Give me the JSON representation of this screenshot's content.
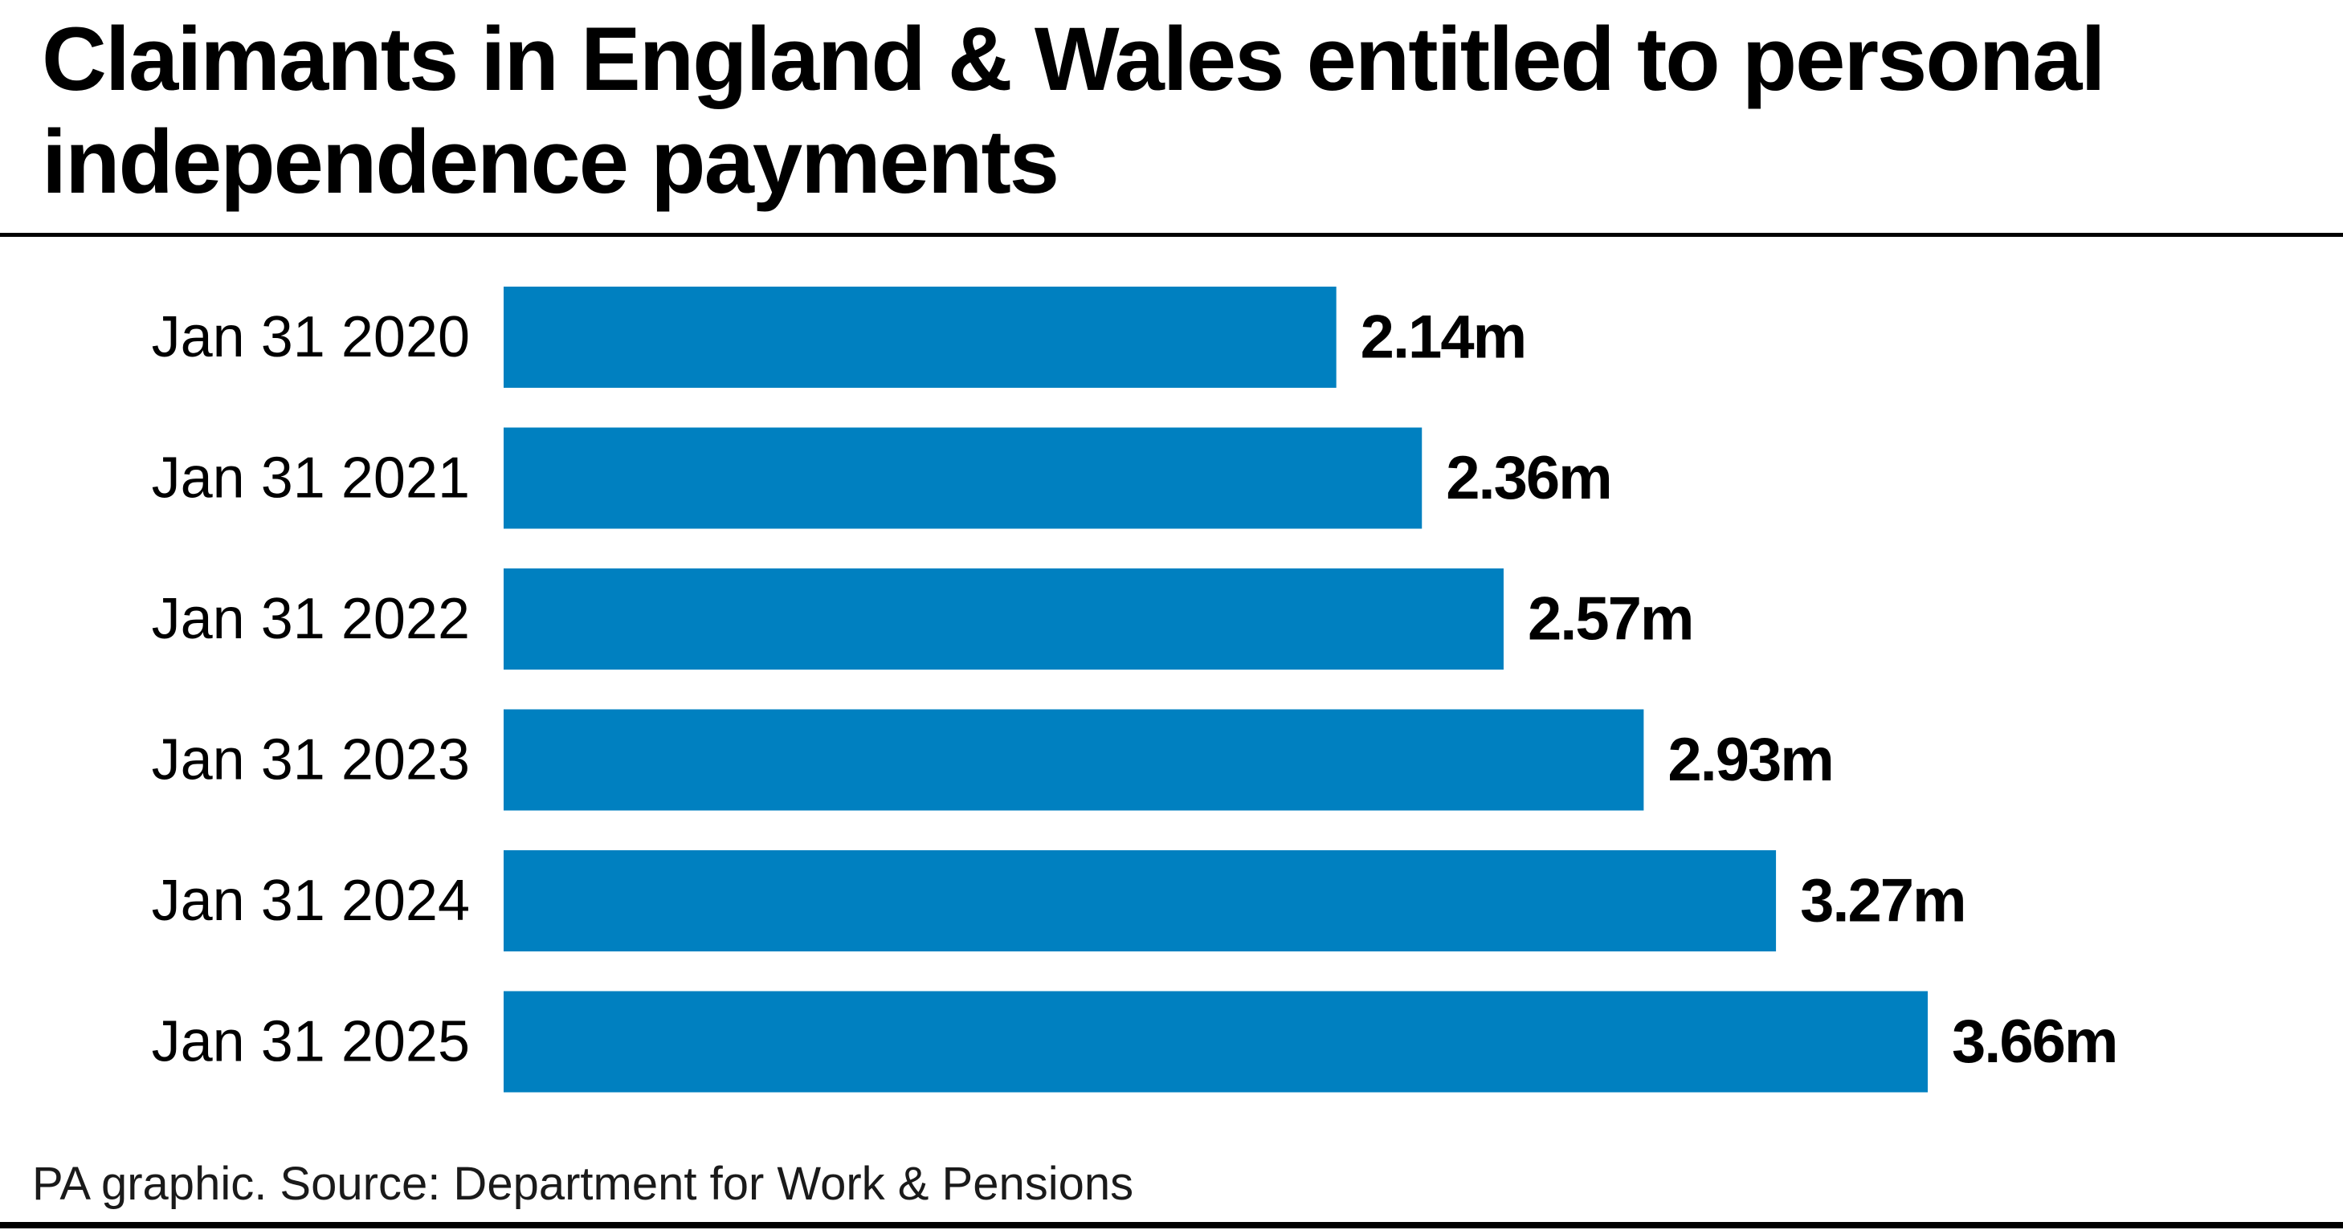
{
  "title": "Claimants in England & Wales entitled to personal independence payments",
  "source": "PA graphic. Source: Department for Work & Pensions",
  "colors": {
    "bar": "#0080c0",
    "text": "#000000",
    "rule": "#000000"
  },
  "chart_data": {
    "type": "bar",
    "orientation": "horizontal",
    "categories": [
      "Jan 31 2020",
      "Jan 31 2021",
      "Jan 31 2022",
      "Jan 31 2023",
      "Jan 31 2024",
      "Jan 31 2025"
    ],
    "values": [
      2.14,
      2.36,
      2.57,
      2.93,
      3.27,
      3.66
    ],
    "value_labels": [
      "2.14m",
      "2.36m",
      "2.57m",
      "2.93m",
      "3.27m",
      "3.66m"
    ],
    "unit": "m",
    "xlim": [
      0,
      3.66
    ],
    "grid": false,
    "legend": "none"
  }
}
